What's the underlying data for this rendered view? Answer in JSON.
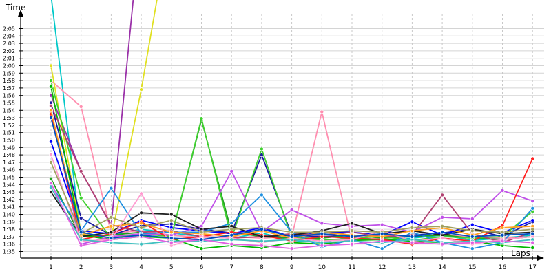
{
  "chart_data": {
    "type": "line",
    "xlabel": "Laps",
    "ylabel": "Time",
    "grid": true,
    "x": [
      1,
      2,
      3,
      4,
      5,
      6,
      7,
      8,
      9,
      10,
      11,
      12,
      13,
      14,
      15,
      16,
      17
    ],
    "x_tick_labels": [
      "1",
      "2",
      "3",
      "4",
      "5",
      "6",
      "7",
      "8",
      "9",
      "10",
      "11",
      "12",
      "13",
      "14",
      "15",
      "16",
      "17"
    ],
    "y_ticks": [
      95,
      96,
      97,
      98,
      99,
      100,
      101,
      102,
      103,
      104,
      105,
      106,
      107,
      108,
      109,
      110,
      111,
      112,
      113,
      114,
      115,
      116,
      117,
      118,
      119,
      120,
      121,
      122,
      123,
      124,
      125
    ],
    "y_tick_labels": [
      "1:35",
      "1:36",
      "1:37",
      "1:38",
      "1:39",
      "1:40",
      "1:41",
      "1:42",
      "1:43",
      "1:44",
      "1:45",
      "1:46",
      "1:47",
      "1:48",
      "1:49",
      "1:50",
      "1:51",
      "1:52",
      "1:53",
      "1:54",
      "1:55",
      "1:56",
      "1:57",
      "1:58",
      "1:59",
      "2:00",
      "2:01",
      "2:02",
      "2:03",
      "2:04",
      "2:05"
    ],
    "ylim": [
      93,
      128.5
    ],
    "series": [
      {
        "color": "#00c8c8",
        "values": [
          129.5,
          97.0,
          97.2,
          98.0,
          97.5,
          97.0,
          96.8,
          97.5,
          96.5,
          96.2,
          97.0,
          96.5,
          96.8,
          97.2,
          96.5,
          96.8,
          97.2
        ]
      },
      {
        "color": "#ff8fb0",
        "values": [
          118.0,
          114.5,
          97.5,
          97.8,
          97.2,
          96.9,
          97.0,
          96.8,
          97.0,
          113.8,
          96.5,
          96.8,
          97.0,
          97.3,
          97.0,
          96.8,
          97.0
        ]
      },
      {
        "color": "#9a30a8",
        "values": [
          116.0,
          105.8,
          98.5,
          140.0,
          null,
          null,
          null,
          null,
          null,
          null,
          null,
          null,
          null,
          null,
          null,
          null,
          null
        ]
      },
      {
        "color": "#e0e020",
        "values": [
          120.0,
          97.5,
          96.8,
          116.8,
          140.0,
          null,
          null,
          null,
          null,
          null,
          null,
          null,
          null,
          null,
          null,
          null,
          null
        ]
      },
      {
        "color": "#1a1aa0",
        "values": [
          115.0,
          99.5,
          97.2,
          98.5,
          98.7,
          98.0,
          97.5,
          108.0,
          97.2,
          97.0,
          97.2,
          97.0,
          97.2,
          97.5,
          98.0,
          97.0,
          99.0
        ]
      },
      {
        "color": "#0000ff",
        "values": [
          109.8,
          97.8,
          97.4,
          99.2,
          98.2,
          97.8,
          97.4,
          98.2,
          97.0,
          97.6,
          97.6,
          97.2,
          99.0,
          97.2,
          98.6,
          97.5,
          99.2
        ]
      },
      {
        "color": "#20a020",
        "values": [
          104.8,
          97.0,
          97.2,
          97.6,
          97.0,
          112.7,
          97.6,
          97.0,
          96.8,
          96.8,
          97.2,
          96.8,
          97.0,
          97.2,
          96.8,
          96.6,
          97.0
        ]
      },
      {
        "color": "#40d030",
        "values": [
          118.0,
          102.2,
          96.8,
          97.4,
          97.0,
          112.9,
          96.8,
          108.8,
          96.8,
          96.5,
          96.8,
          97.0,
          96.5,
          97.0,
          96.8,
          97.0,
          100.4
        ]
      },
      {
        "color": "#00b800",
        "values": [
          117.2,
          97.2,
          96.6,
          97.0,
          96.8,
          95.4,
          95.8,
          95.5,
          96.2,
          96.0,
          96.5,
          96.6,
          96.4,
          96.2,
          96.4,
          95.8,
          95.5
        ]
      },
      {
        "color": "#c050e8",
        "values": [
          113.8,
          96.0,
          97.0,
          97.4,
          97.2,
          98.4,
          105.8,
          97.6,
          100.6,
          98.8,
          98.4,
          98.6,
          97.6,
          99.6,
          99.4,
          103.2,
          101.8
        ]
      },
      {
        "color": "#b04070",
        "values": [
          114.6,
          105.8,
          98.6,
          97.6,
          97.8,
          97.0,
          96.8,
          97.0,
          97.4,
          97.2,
          97.6,
          97.0,
          97.2,
          102.6,
          97.4,
          96.2,
          97.6
        ]
      },
      {
        "color": "#1e90e0",
        "values": [
          104.0,
          97.8,
          103.5,
          97.4,
          97.6,
          97.6,
          98.8,
          102.6,
          97.6,
          95.6,
          96.6,
          95.4,
          97.6,
          96.2,
          95.4,
          96.2,
          100.8
        ]
      },
      {
        "color": "#ff2020",
        "values": [
          113.5,
          96.6,
          97.4,
          99.0,
          96.6,
          97.0,
          97.6,
          97.2,
          96.4,
          97.0,
          96.8,
          96.6,
          96.0,
          96.8,
          96.4,
          98.5,
          107.5
        ]
      },
      {
        "color": "#202020",
        "values": [
          103.0,
          97.0,
          97.6,
          100.2,
          100.0,
          98.0,
          98.4,
          97.0,
          97.2,
          97.8,
          98.8,
          97.4,
          97.8,
          97.2,
          98.0,
          97.4,
          97.6
        ]
      },
      {
        "color": "#ffa020",
        "values": [
          114.0,
          97.2,
          98.4,
          98.8,
          97.6,
          97.4,
          97.0,
          97.8,
          96.8,
          97.6,
          97.2,
          97.0,
          97.8,
          98.2,
          97.2,
          98.2,
          98.4
        ]
      },
      {
        "color": "#ff9ad0",
        "values": [
          108.0,
          96.4,
          96.6,
          102.8,
          95.8,
          97.0,
          96.8,
          96.2,
          96.8,
          96.4,
          96.6,
          97.8,
          96.4,
          96.8,
          96.0,
          96.6,
          97.0
        ]
      },
      {
        "color": "#a0a060",
        "values": [
          107.0,
          97.4,
          99.6,
          98.2,
          99.2,
          97.6,
          98.0,
          98.2,
          97.6,
          97.6,
          97.8,
          97.6,
          98.2,
          98.4,
          97.8,
          97.6,
          98.0
        ]
      },
      {
        "color": "#40c0c0",
        "values": [
          103.6,
          96.6,
          96.2,
          96.0,
          96.4,
          96.4,
          96.6,
          96.4,
          96.6,
          96.2,
          96.4,
          96.2,
          96.6,
          96.2,
          96.4,
          96.2,
          96.6
        ]
      },
      {
        "color": "#e060e0",
        "values": [
          104.2,
          95.8,
          96.6,
          97.0,
          96.2,
          96.6,
          96.0,
          95.8,
          95.4,
          95.8,
          96.0,
          96.4,
          96.2,
          96.0,
          96.2,
          96.4,
          96.2
        ]
      },
      {
        "color": "#0050c0",
        "values": [
          113.0,
          97.6,
          96.8,
          97.2,
          96.8,
          96.6,
          97.2,
          98.0,
          97.0,
          97.4,
          97.0,
          97.4,
          97.0,
          97.6,
          97.0,
          97.2,
          97.4
        ]
      }
    ]
  }
}
